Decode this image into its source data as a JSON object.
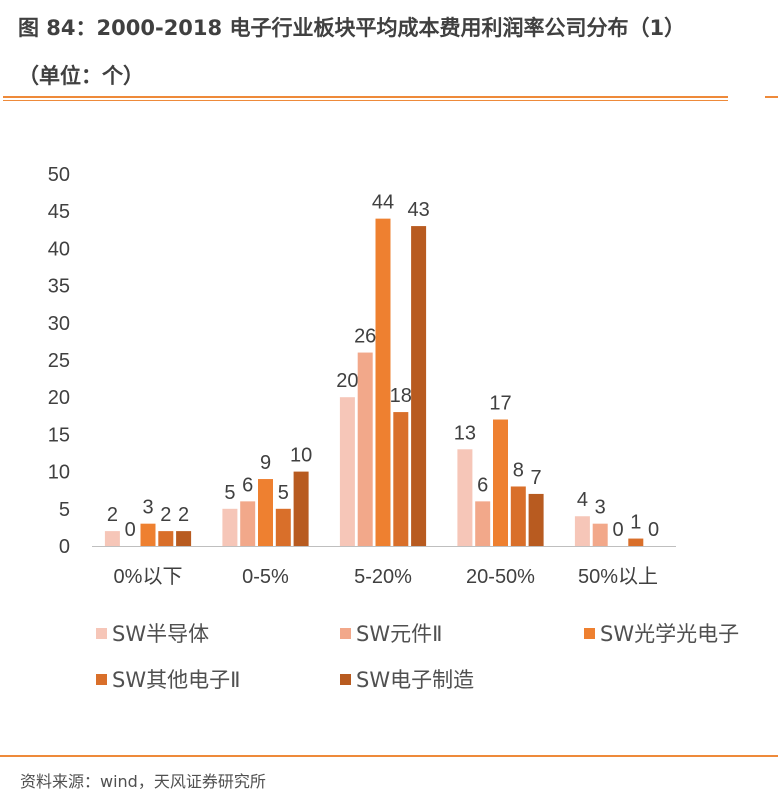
{
  "title_line1": "图 84：2000-2018 电子行业板块平均成本费用利润率公司分布（1）",
  "title_line2": "（单位：个）",
  "source": "资料来源：wind，天风证券研究所",
  "chart_data": {
    "type": "bar",
    "title": "2000-2018 电子行业板块平均成本费用利润率公司分布（1）",
    "unit": "个",
    "categories": [
      "0%以下",
      "0-5%",
      "5-20%",
      "20-50%",
      "50%以上"
    ],
    "series": [
      {
        "name": "SW半导体",
        "color": "#F6C6B8",
        "values": [
          2,
          5,
          20,
          13,
          4
        ]
      },
      {
        "name": "SW元件Ⅱ",
        "color": "#F2A88A",
        "values": [
          0,
          6,
          26,
          6,
          3
        ]
      },
      {
        "name": "SW光学光电子",
        "color": "#EE8030",
        "values": [
          3,
          9,
          44,
          17,
          0
        ]
      },
      {
        "name": "SW其他电子Ⅱ",
        "color": "#D96F2A",
        "values": [
          2,
          5,
          18,
          8,
          1
        ]
      },
      {
        "name": "SW电子制造",
        "color": "#B85B20",
        "values": [
          2,
          10,
          43,
          7,
          0
        ]
      }
    ],
    "ylim": [
      0,
      50
    ],
    "yticks": [
      0,
      5,
      10,
      15,
      20,
      25,
      30,
      35,
      40,
      45,
      50
    ],
    "xlabel": "",
    "ylabel": "",
    "grid": false,
    "legend_position": "bottom"
  }
}
